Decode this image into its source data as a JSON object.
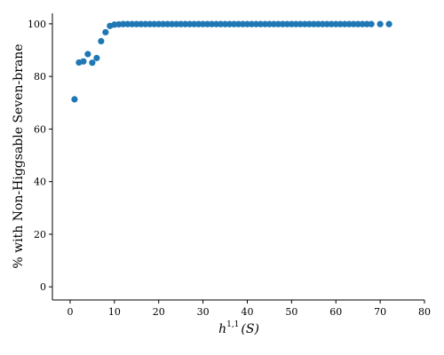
{
  "chart_data": {
    "type": "scatter",
    "xlabel": {
      "symbol": "h",
      "superscript": "1,1",
      "argument": "(S)"
    },
    "ylabel": "% with Non-Higgsable Seven-brane",
    "xlim": [
      -4,
      80
    ],
    "ylim": [
      -5,
      104
    ],
    "x_ticks": [
      0,
      10,
      20,
      30,
      40,
      50,
      60,
      70,
      80
    ],
    "y_ticks": [
      0,
      20,
      40,
      60,
      80,
      100
    ],
    "grid": false,
    "marker_color": "#1f77b4",
    "series": [
      {
        "x": [
          1,
          2,
          3,
          4,
          5,
          6,
          7,
          8,
          9,
          10,
          11,
          12,
          13,
          14,
          15,
          16,
          17,
          18,
          19,
          20,
          21,
          22,
          23,
          24,
          25,
          26,
          27,
          28,
          29,
          30,
          31,
          32,
          33,
          34,
          35,
          36,
          37,
          38,
          39,
          40,
          41,
          42,
          43,
          44,
          45,
          46,
          47,
          48,
          49,
          50,
          51,
          52,
          53,
          54,
          55,
          56,
          57,
          58,
          59,
          60,
          61,
          62,
          63,
          64,
          65,
          66,
          67,
          68,
          70,
          72
        ],
        "y": [
          71.3,
          85.3,
          85.7,
          88.5,
          85.2,
          87.0,
          93.4,
          96.8,
          99.2,
          99.7,
          99.8,
          99.9,
          99.9,
          99.9,
          99.9,
          99.9,
          99.9,
          99.9,
          99.9,
          99.9,
          99.9,
          99.9,
          99.9,
          99.9,
          99.9,
          99.9,
          99.9,
          99.9,
          99.9,
          99.9,
          99.9,
          99.9,
          99.9,
          99.9,
          99.9,
          99.9,
          99.9,
          99.9,
          99.9,
          99.9,
          99.9,
          99.9,
          99.9,
          99.9,
          99.9,
          99.9,
          99.9,
          99.9,
          99.9,
          99.9,
          99.9,
          99.9,
          99.9,
          99.9,
          99.9,
          99.9,
          99.9,
          99.9,
          99.9,
          99.9,
          99.9,
          99.9,
          99.9,
          99.9,
          99.9,
          99.9,
          99.9,
          99.9,
          99.9,
          99.9
        ]
      }
    ]
  }
}
